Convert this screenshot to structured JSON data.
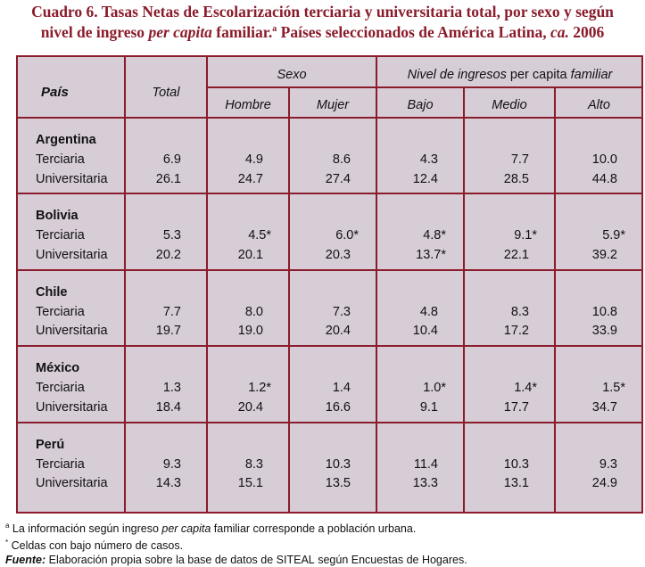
{
  "title": {
    "part1": "Cuadro 6. Tasas Netas de Escolarización terciaria y universitaria total, por sexo y según",
    "part2a": "nivel de ingreso ",
    "part2b": "per capita",
    "part2c": " familiar.",
    "part2sup": "a",
    "part2d": " Países seleccionados de América Latina, ",
    "part2e": "ca.",
    "part2f": " 2006"
  },
  "headers": {
    "pais": "País",
    "total": "Total",
    "sexo": "Sexo",
    "hombre": "Hombre",
    "mujer": "Mujer",
    "nivel_a": "Nivel de ingresos",
    "nivel_b": " per capita ",
    "nivel_c": "familiar",
    "bajo": "Bajo",
    "medio": "Medio",
    "alto": "Alto"
  },
  "countries": [
    {
      "name": "Argentina",
      "rows": [
        {
          "label": "Terciaria",
          "values": [
            "6.9",
            "4.9",
            "8.6",
            "4.3",
            "7.7",
            "10.0"
          ]
        },
        {
          "label": "Universitaria",
          "values": [
            "26.1",
            "24.7",
            "27.4",
            "12.4",
            "28.5",
            "44.8"
          ]
        }
      ]
    },
    {
      "name": "Bolivia",
      "rows": [
        {
          "label": "Terciaria",
          "values": [
            "5.3",
            "4.5*",
            "6.0*",
            "4.8*",
            "9.1*",
            "5.9*"
          ]
        },
        {
          "label": "Universitaria",
          "values": [
            "20.2",
            "20.1",
            "20.3",
            "13.7*",
            "22.1",
            "39.2"
          ]
        }
      ]
    },
    {
      "name": "Chile",
      "rows": [
        {
          "label": "Terciaria",
          "values": [
            "7.7",
            "8.0",
            "7.3",
            "4.8",
            "8.3",
            "10.8"
          ]
        },
        {
          "label": "Universitaria",
          "values": [
            "19.7",
            "19.0",
            "20.4",
            "10.4",
            "17.2",
            "33.9"
          ]
        }
      ]
    },
    {
      "name": "México",
      "rows": [
        {
          "label": "Terciaria",
          "values": [
            "1.3",
            "1.2*",
            "1.4",
            "1.0*",
            "1.4*",
            "1.5*"
          ]
        },
        {
          "label": "Universitaria",
          "values": [
            "18.4",
            "20.4",
            "16.6",
            "9.1",
            "17.7",
            "34.7"
          ]
        }
      ]
    },
    {
      "name": "Perú",
      "rows": [
        {
          "label": "Terciaria",
          "values": [
            "9.3",
            "8.3",
            "10.3",
            "11.4",
            "10.3",
            "9.3"
          ]
        },
        {
          "label": "Universitaria",
          "values": [
            "14.3",
            "15.1",
            "13.5",
            "13.3",
            "13.1",
            "24.9"
          ]
        }
      ]
    }
  ],
  "notes": {
    "a_sup": "a",
    "a_text1": " La información según ingreso ",
    "a_text2": "per capita",
    "a_text3": " familiar corresponde a población urbana.",
    "star_sup": "*",
    "star_text": " Celdas con bajo número de casos.",
    "fuente_label": "Fuente:",
    "fuente_text1": " Elaboración propia sobre la base de datos de ",
    "fuente_siteal": "SITEAL",
    "fuente_text2": " según Encuestas de Hogares."
  }
}
